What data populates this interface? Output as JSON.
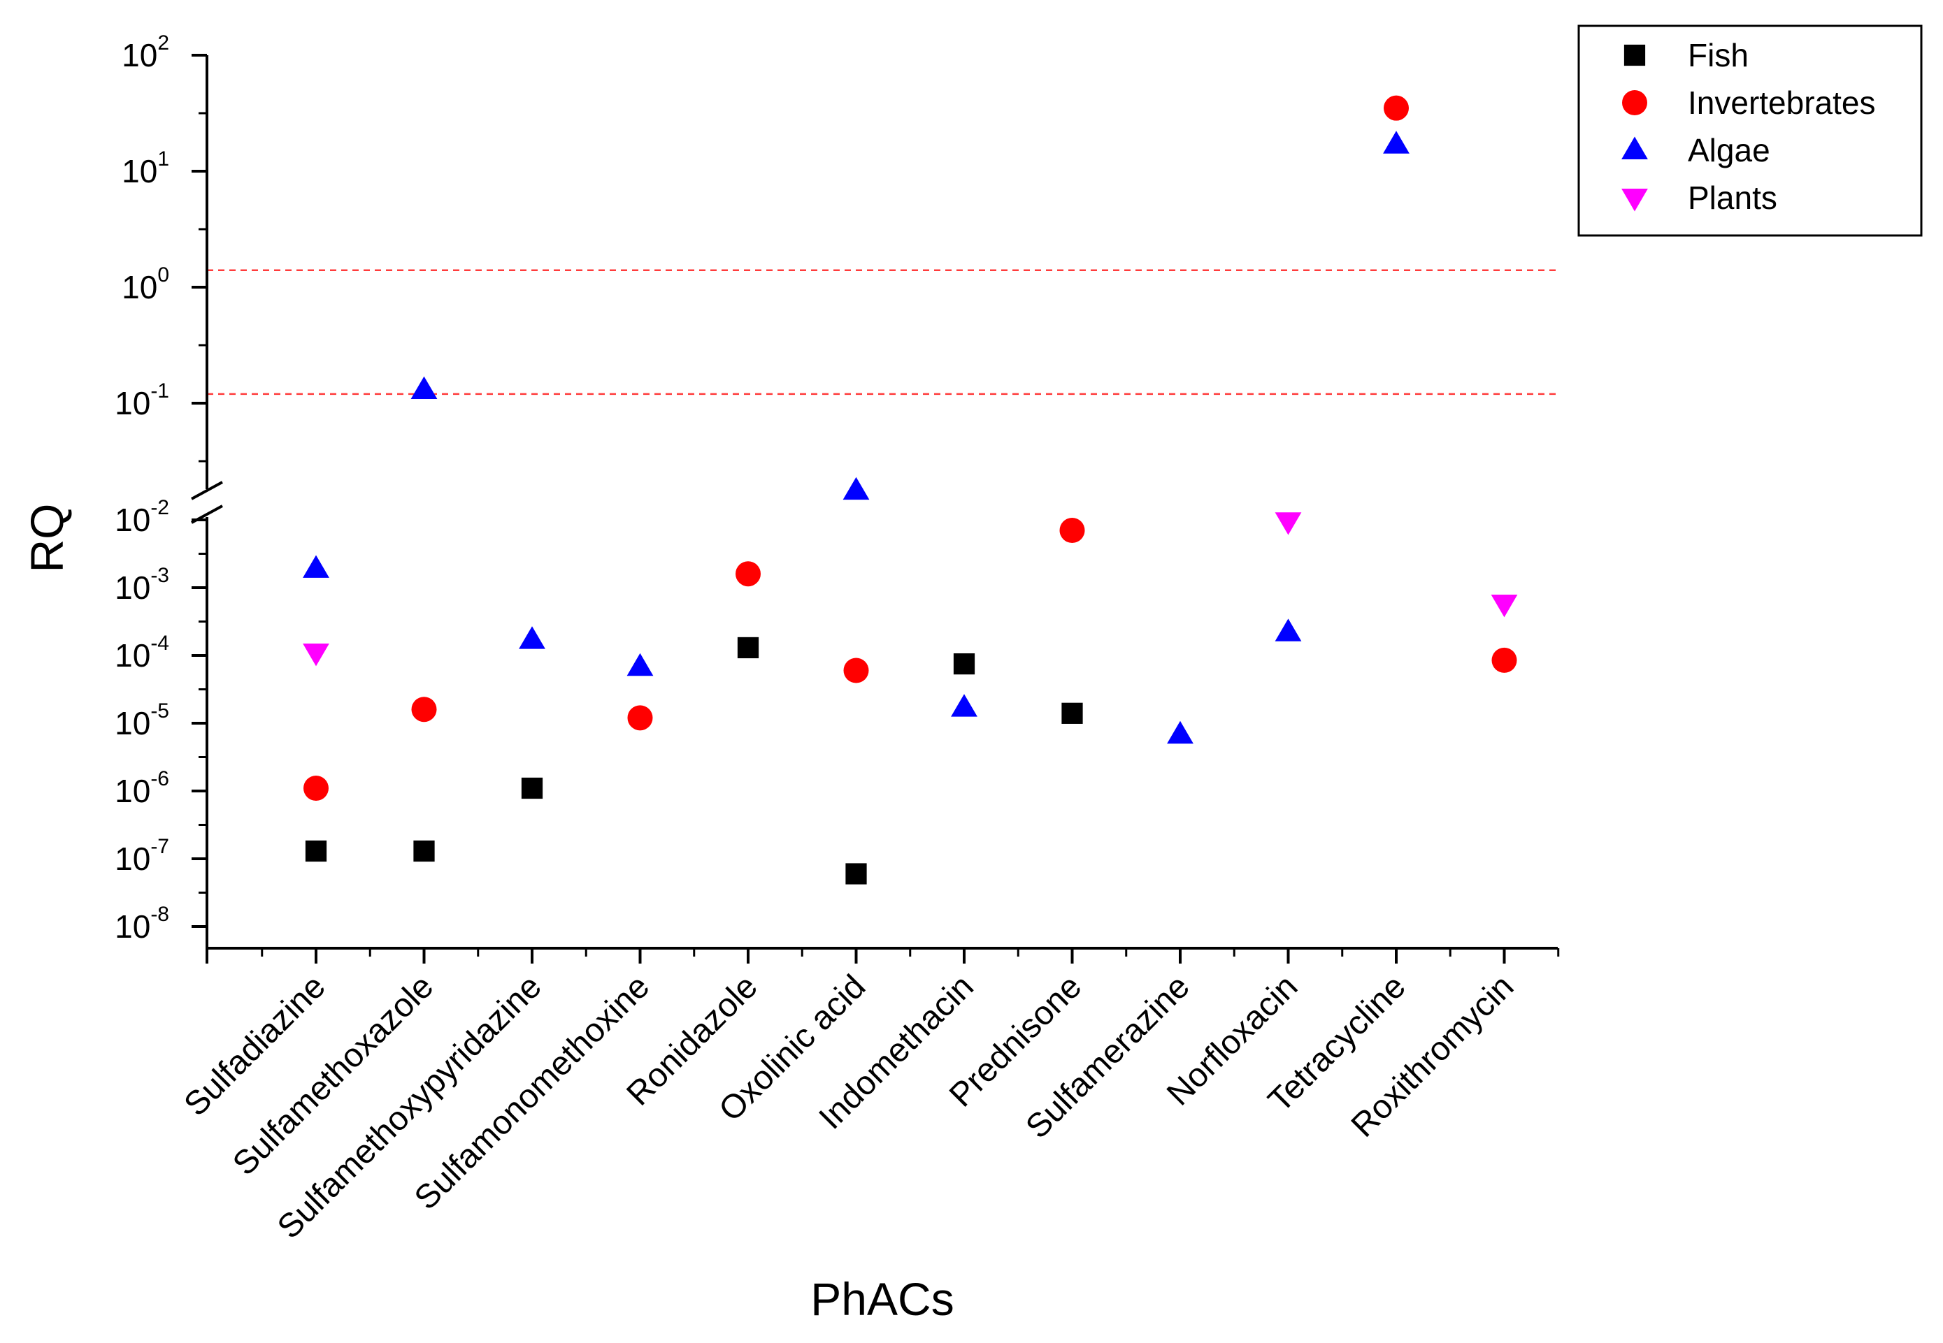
{
  "chart_data": {
    "type": "scatter",
    "title": "",
    "xlabel": "PhACs",
    "ylabel": "RQ",
    "yscale": "log",
    "y_axis_break": "between 10^-2 and 10^-1.3",
    "categories": [
      "Sulfadiazine",
      "Sulfamethoxazole",
      "Sulfamethoxypyridazine",
      "Sulfamonomethoxine",
      "Ronidazole",
      "Oxolinic acid",
      "Indomethacin",
      "Prednisone",
      "Sulfamerazine",
      "Norfloxacin",
      "Tetracycline",
      "Roxithromycin"
    ],
    "y_ticks_upper": [
      {
        "base": "10",
        "exp": "2",
        "value": 100
      },
      {
        "base": "10",
        "exp": "1",
        "value": 10
      },
      {
        "base": "10",
        "exp": "0",
        "value": 1
      },
      {
        "base": "10",
        "exp": "-1",
        "value": 0.1
      }
    ],
    "y_ticks_lower": [
      {
        "base": "10",
        "exp": "-2",
        "value": 0.01
      },
      {
        "base": "10",
        "exp": "-3",
        "value": 0.001
      },
      {
        "base": "10",
        "exp": "-4",
        "value": 0.0001
      },
      {
        "base": "10",
        "exp": "-5",
        "value": 1e-05
      },
      {
        "base": "10",
        "exp": "-6",
        "value": 1e-06
      },
      {
        "base": "10",
        "exp": "-7",
        "value": 1e-07
      },
      {
        "base": "10",
        "exp": "-8",
        "value": 1e-08
      }
    ],
    "reference_lines": [
      {
        "value": 1.4,
        "color": "#ff3b3b",
        "style": "dashed"
      },
      {
        "value": 0.12,
        "color": "#ff3b3b",
        "style": "dashed"
      }
    ],
    "legend_position": "top-right",
    "series": [
      {
        "name": "Fish",
        "marker": "square",
        "color": "#000000",
        "values": [
          1.3e-07,
          1.3e-07,
          1.1e-06,
          null,
          0.00013,
          6e-08,
          7.5e-05,
          1.4e-05,
          null,
          null,
          null,
          null
        ]
      },
      {
        "name": "Invertebrates",
        "marker": "circle",
        "color": "#ff0000",
        "values": [
          1.1e-06,
          1.6e-05,
          null,
          1.2e-05,
          0.0016,
          6e-05,
          null,
          0.007,
          null,
          null,
          35,
          8.5e-05
        ]
      },
      {
        "name": "Algae",
        "marker": "triangle-up",
        "color": "#0000ff",
        "values": [
          0.0019,
          0.13,
          0.00017,
          6.8e-05,
          null,
          0.027,
          1.7e-05,
          null,
          6.8e-06,
          0.00022,
          17,
          null
        ]
      },
      {
        "name": "Plants",
        "marker": "triangle-down",
        "color": "#ff00ff",
        "values": [
          0.00011,
          null,
          null,
          null,
          null,
          null,
          null,
          null,
          null,
          0.0095,
          null,
          0.00058
        ]
      }
    ]
  }
}
